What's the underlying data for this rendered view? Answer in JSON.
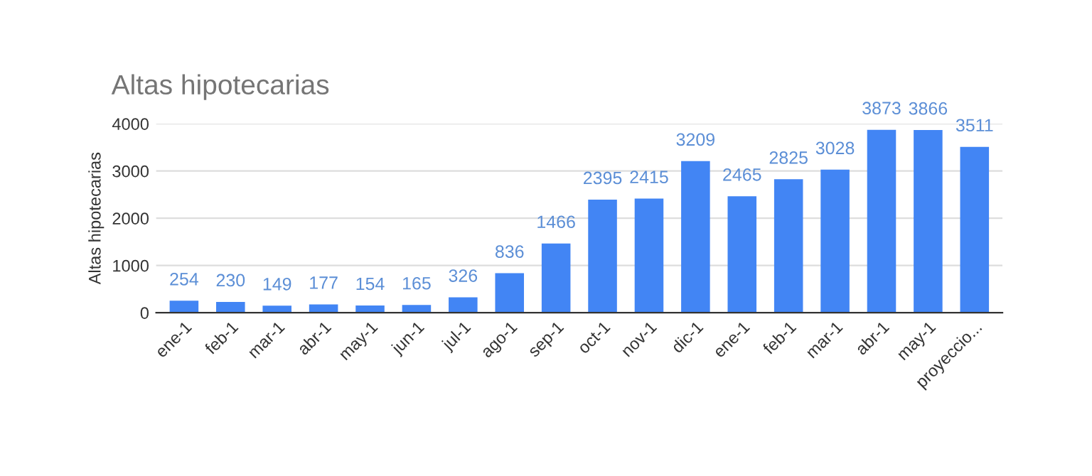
{
  "chart_data": {
    "type": "bar",
    "title": "Altas hipotecarias",
    "ylabel": "Altas hipotecarias",
    "categories": [
      "ene-1",
      "feb-1",
      "mar-1",
      "abr-1",
      "may-1",
      "jun-1",
      "jul-1",
      "ago-1",
      "sep-1",
      "oct-1",
      "nov-1",
      "dic-1",
      "ene-1",
      "feb-1",
      "mar-1",
      "abr-1",
      "may-1",
      "proyeccio..."
    ],
    "values": [
      254,
      230,
      149,
      177,
      154,
      165,
      326,
      836,
      1466,
      2395,
      2415,
      3209,
      2465,
      2825,
      3028,
      3873,
      3866,
      3511
    ],
    "color": "#4285f4",
    "ylim": [
      0,
      4000
    ],
    "yticks": [
      0,
      1000,
      2000,
      3000,
      4000
    ],
    "grid": "y",
    "data_labels": true
  }
}
